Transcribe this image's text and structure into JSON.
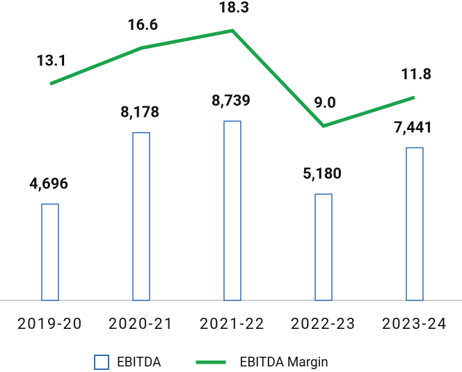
{
  "chart_data": {
    "type": "bar+line",
    "categories": [
      "2019-20",
      "2020-21",
      "2021-22",
      "2022-23",
      "2023-24"
    ],
    "series": [
      {
        "name": "EBITDA",
        "type": "bar",
        "color": "#2e6db4",
        "values": [
          4696,
          8178,
          8739,
          5180,
          7441
        ],
        "value_labels": [
          "4,696",
          "8,178",
          "8,739",
          "5,180",
          "7,441"
        ]
      },
      {
        "name": "EBITDA Margin",
        "type": "line",
        "axis": "y2",
        "color": "#1aa34a",
        "values": [
          13.1,
          16.6,
          18.3,
          9.0,
          11.8
        ],
        "value_labels": [
          "13.1",
          "16.6",
          "18.3",
          "9.0",
          "11.8"
        ]
      }
    ],
    "ylim": [
      0,
      14000
    ],
    "y2lim": [
      -8,
      20
    ],
    "legend": "bottom"
  }
}
